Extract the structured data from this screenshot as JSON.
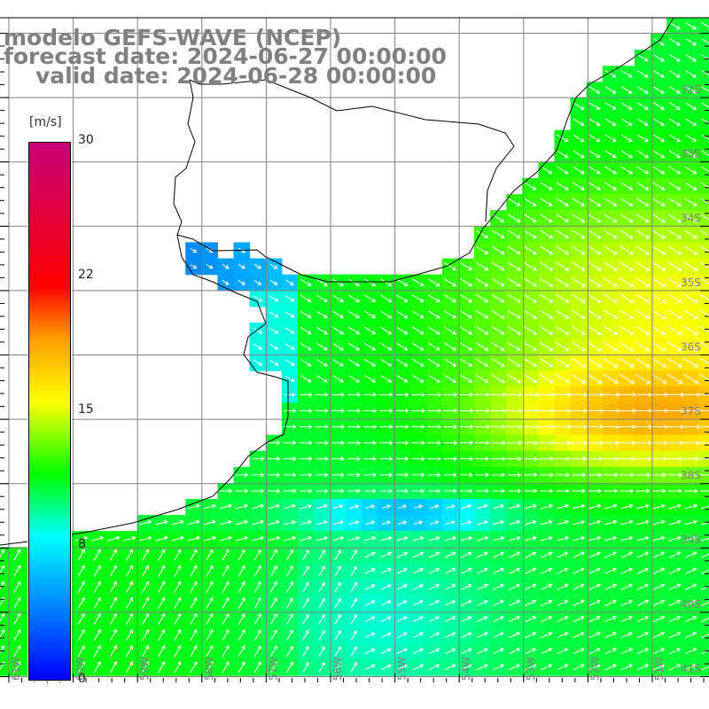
{
  "title": {
    "line1": "modelo GEFS-WAVE (NCEP)",
    "line2": "forecast date: 2024-06-27 00:00:00",
    "line3": "valid date: 2024-06-28 00:00:00"
  },
  "colorbar": {
    "unit": "[m/s]",
    "labels": [
      "30",
      "22",
      "15",
      "8",
      "0"
    ],
    "min": 0,
    "max": 30,
    "colors": {
      "0": "#0000ff",
      "8": "#00ffff",
      "11.5": "#00ff00",
      "15": "#ffff00",
      "19": "#ffa000",
      "22": "#ff0000",
      "30": "#c80078"
    }
  },
  "axes": {
    "lon_labels": [
      "61W",
      "60W",
      "59W",
      "58W",
      "57W",
      "56W",
      "55W",
      "54W",
      "53W",
      "52W",
      "51W"
    ],
    "lat_labels": [
      "32S",
      "33S",
      "34S",
      "35S",
      "36S",
      "37S",
      "38S",
      "39S",
      "40S",
      "41S"
    ]
  },
  "colors": {
    "grid": "#808080",
    "coast": "#000000",
    "arrow": "#ffffff",
    "title": "#808080"
  }
}
